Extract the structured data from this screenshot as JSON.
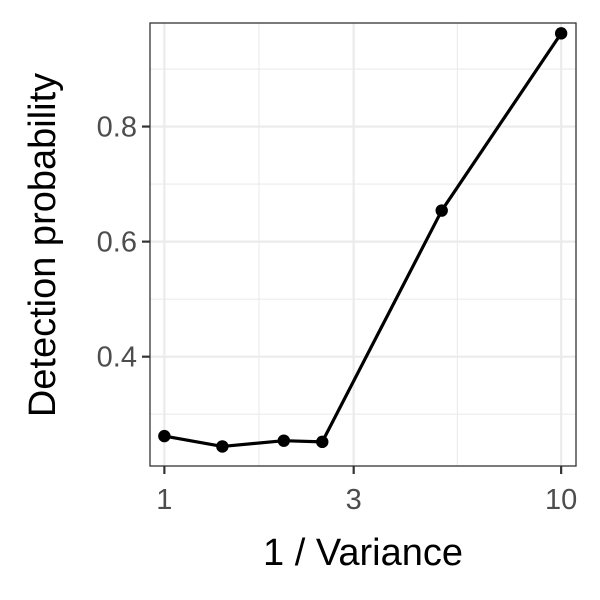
{
  "chart_data": {
    "type": "line",
    "title": "",
    "xlabel": "1 / Variance",
    "ylabel": "Detection probability",
    "x_scale": "log",
    "xlim": [
      0.92,
      10.9
    ],
    "ylim": [
      0.21,
      0.98
    ],
    "x_ticks": [
      1,
      3,
      10
    ],
    "x_tick_labels": [
      "1",
      "3",
      "10"
    ],
    "x_minor_ticks": [
      1.7320508,
      5.4772256
    ],
    "y_ticks": [
      0.4,
      0.6,
      0.8
    ],
    "y_tick_labels": [
      "0.4",
      "0.6",
      "0.8"
    ],
    "y_minor_ticks": [
      0.3,
      0.5,
      0.7,
      0.9
    ],
    "grid": true,
    "legend": "none",
    "colors": {
      "line": "#000000",
      "point": "#000000",
      "grid": "#ebebeb",
      "panel_border": "#333333",
      "tick_label": "#4d4d4d"
    },
    "series": [
      {
        "x": [
          1,
          1.4,
          2,
          2.5,
          5,
          10
        ],
        "y": [
          0.262,
          0.244,
          0.254,
          0.252,
          0.654,
          0.962
        ]
      }
    ]
  }
}
